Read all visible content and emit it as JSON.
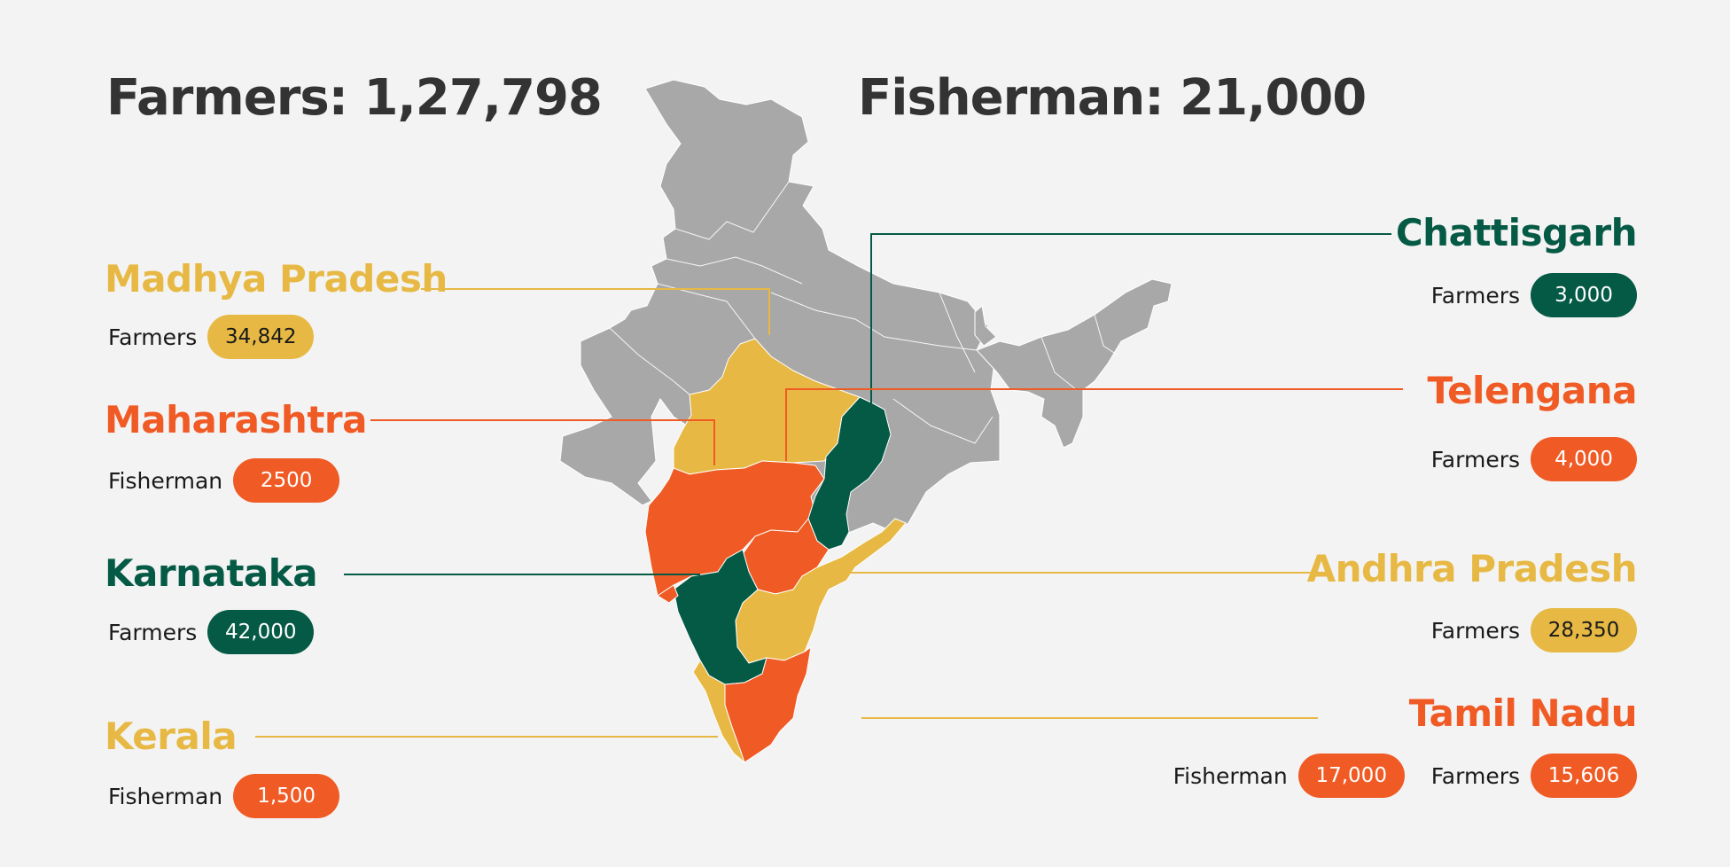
{
  "colors": {
    "yellow": "#e7b944",
    "orange": "#f05a24",
    "green": "#055a45",
    "grey": "#a8a8a8",
    "text": "#333333"
  },
  "totals": {
    "farmers": "Farmers: 1,27,798",
    "fisherman": "Fisherman: 21,000"
  },
  "states": {
    "madhya_pradesh": {
      "name": "Madhya Pradesh",
      "label1": "Farmers",
      "value1": "34,842"
    },
    "maharashtra": {
      "name": "Maharashtra",
      "label1": "Fisherman",
      "value1": "2500"
    },
    "karnataka": {
      "name": "Karnataka",
      "label1": "Farmers",
      "value1": "42,000"
    },
    "kerala": {
      "name": "Kerala",
      "label1": "Fisherman",
      "value1": "1,500"
    },
    "chattisgarh": {
      "name": "Chattisgarh",
      "label1": "Farmers",
      "value1": "3,000"
    },
    "telengana": {
      "name": "Telengana",
      "label1": "Farmers",
      "value1": "4,000"
    },
    "andhra_pradesh": {
      "name": "Andhra Pradesh",
      "label1": "Farmers",
      "value1": "28,350"
    },
    "tamil_nadu": {
      "name": "Tamil Nadu",
      "label1": "Fisherman",
      "value1": "17,000",
      "label2": "Farmers",
      "value2": "15,606"
    }
  }
}
